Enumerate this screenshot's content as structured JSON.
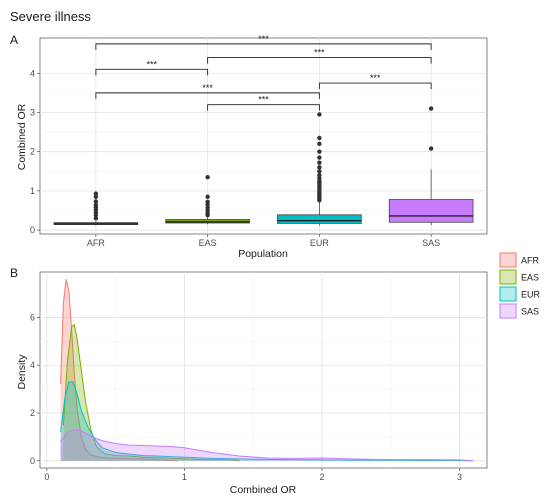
{
  "title": "Severe illness",
  "chart_data": [
    {
      "panel": "A",
      "type": "box",
      "xlabel": "Population",
      "ylabel": "Combined OR",
      "categories": [
        "AFR",
        "EAS",
        "EUR",
        "SAS"
      ],
      "ylim": [
        -0.1,
        4.9
      ],
      "yticks": [
        0,
        1,
        2,
        3,
        4
      ],
      "grid": true,
      "colors": [
        "#f8766d",
        "#7cae00",
        "#00bfc4",
        "#c77cff"
      ],
      "boxes": [
        {
          "population": "AFR",
          "whisker_low": 0.12,
          "q1": 0.14,
          "median": 0.16,
          "q3": 0.19,
          "whisker_high": 0.23,
          "outliers": [
            0.3,
            0.38,
            0.45,
            0.52,
            0.58,
            0.64,
            0.73,
            0.85,
            0.93
          ]
        },
        {
          "population": "EAS",
          "whisker_low": 0.15,
          "q1": 0.18,
          "median": 0.21,
          "q3": 0.27,
          "whisker_high": 0.33,
          "outliers": [
            0.38,
            0.43,
            0.5,
            0.57,
            0.65,
            0.72,
            0.85,
            1.35
          ]
        },
        {
          "population": "EUR",
          "whisker_low": 0.12,
          "q1": 0.17,
          "median": 0.24,
          "q3": 0.39,
          "whisker_high": 0.72,
          "outliers": [
            0.76,
            0.8,
            0.84,
            0.88,
            0.92,
            0.96,
            1.0,
            1.05,
            1.1,
            1.15,
            1.2,
            1.25,
            1.32,
            1.4,
            1.5,
            1.6,
            1.72,
            1.85,
            2.0,
            2.2,
            2.35,
            2.95
          ]
        },
        {
          "population": "SAS",
          "whisker_low": 0.12,
          "q1": 0.2,
          "median": 0.36,
          "q3": 0.78,
          "whisker_high": 1.55,
          "outliers": [
            2.08,
            3.1
          ]
        }
      ],
      "significance": [
        {
          "from": "AFR",
          "to": "SAS",
          "y": 4.75,
          "label": "***"
        },
        {
          "from": "EAS",
          "to": "SAS",
          "y": 4.4,
          "label": "***"
        },
        {
          "from": "AFR",
          "to": "EAS",
          "y": 4.1,
          "label": "***"
        },
        {
          "from": "EUR",
          "to": "SAS",
          "y": 3.75,
          "label": "***"
        },
        {
          "from": "AFR",
          "to": "EUR",
          "y": 3.5,
          "label": "***"
        },
        {
          "from": "EAS",
          "to": "EUR",
          "y": 3.2,
          "label": "***"
        }
      ]
    },
    {
      "panel": "B",
      "type": "area",
      "xlabel": "Combined OR",
      "ylabel": "Density",
      "xlim": [
        -0.05,
        3.2
      ],
      "ylim": [
        -0.3,
        7.9
      ],
      "xticks": [
        0,
        1,
        2,
        3
      ],
      "yticks": [
        0,
        2,
        4,
        6
      ],
      "grid": true,
      "legend_position": "right",
      "series": [
        {
          "name": "AFR",
          "color": "#f8766d",
          "fill": "#f8766d",
          "x": [
            0.1,
            0.12,
            0.14,
            0.16,
            0.18,
            0.2,
            0.22,
            0.25,
            0.28,
            0.32,
            0.38,
            0.45,
            0.55,
            0.65,
            0.75,
            0.85,
            0.95
          ],
          "y": [
            3.2,
            6.6,
            7.6,
            7.1,
            5.5,
            3.6,
            2.2,
            1.0,
            0.5,
            0.25,
            0.15,
            0.12,
            0.1,
            0.08,
            0.06,
            0.03,
            0.0
          ]
        },
        {
          "name": "EAS",
          "color": "#7cae00",
          "fill": "#7cae00",
          "x": [
            0.12,
            0.15,
            0.18,
            0.2,
            0.22,
            0.25,
            0.28,
            0.32,
            0.36,
            0.42,
            0.5,
            0.6,
            0.7,
            0.85,
            1.0,
            1.15,
            1.25,
            1.35,
            1.4
          ],
          "y": [
            1.5,
            4.2,
            5.6,
            5.7,
            5.1,
            3.8,
            2.5,
            1.3,
            0.6,
            0.3,
            0.22,
            0.2,
            0.15,
            0.12,
            0.08,
            0.05,
            0.05,
            0.04,
            0.0
          ]
        },
        {
          "name": "EUR",
          "color": "#00bfc4",
          "fill": "#00bfc4",
          "x": [
            0.1,
            0.13,
            0.16,
            0.19,
            0.22,
            0.25,
            0.3,
            0.35,
            0.4,
            0.5,
            0.6,
            0.7,
            0.8,
            1.0,
            1.2,
            1.5,
            1.8,
            2.0,
            2.2,
            2.4,
            2.7,
            2.95,
            3.1
          ],
          "y": [
            1.2,
            2.6,
            3.3,
            3.3,
            2.8,
            2.1,
            1.4,
            0.9,
            0.55,
            0.35,
            0.28,
            0.22,
            0.2,
            0.15,
            0.1,
            0.07,
            0.05,
            0.04,
            0.03,
            0.03,
            0.02,
            0.02,
            0.0
          ]
        },
        {
          "name": "SAS",
          "color": "#c77cff",
          "fill": "#c77cff",
          "x": [
            0.1,
            0.15,
            0.2,
            0.25,
            0.3,
            0.35,
            0.4,
            0.5,
            0.6,
            0.7,
            0.8,
            0.9,
            1.0,
            1.1,
            1.2,
            1.4,
            1.6,
            1.8,
            2.0,
            2.2,
            2.5,
            2.8,
            3.0,
            3.1
          ],
          "y": [
            0.8,
            1.2,
            1.3,
            1.25,
            1.1,
            0.95,
            0.85,
            0.72,
            0.66,
            0.64,
            0.62,
            0.6,
            0.55,
            0.45,
            0.35,
            0.2,
            0.12,
            0.1,
            0.12,
            0.08,
            0.05,
            0.05,
            0.04,
            0.0
          ]
        }
      ]
    }
  ]
}
